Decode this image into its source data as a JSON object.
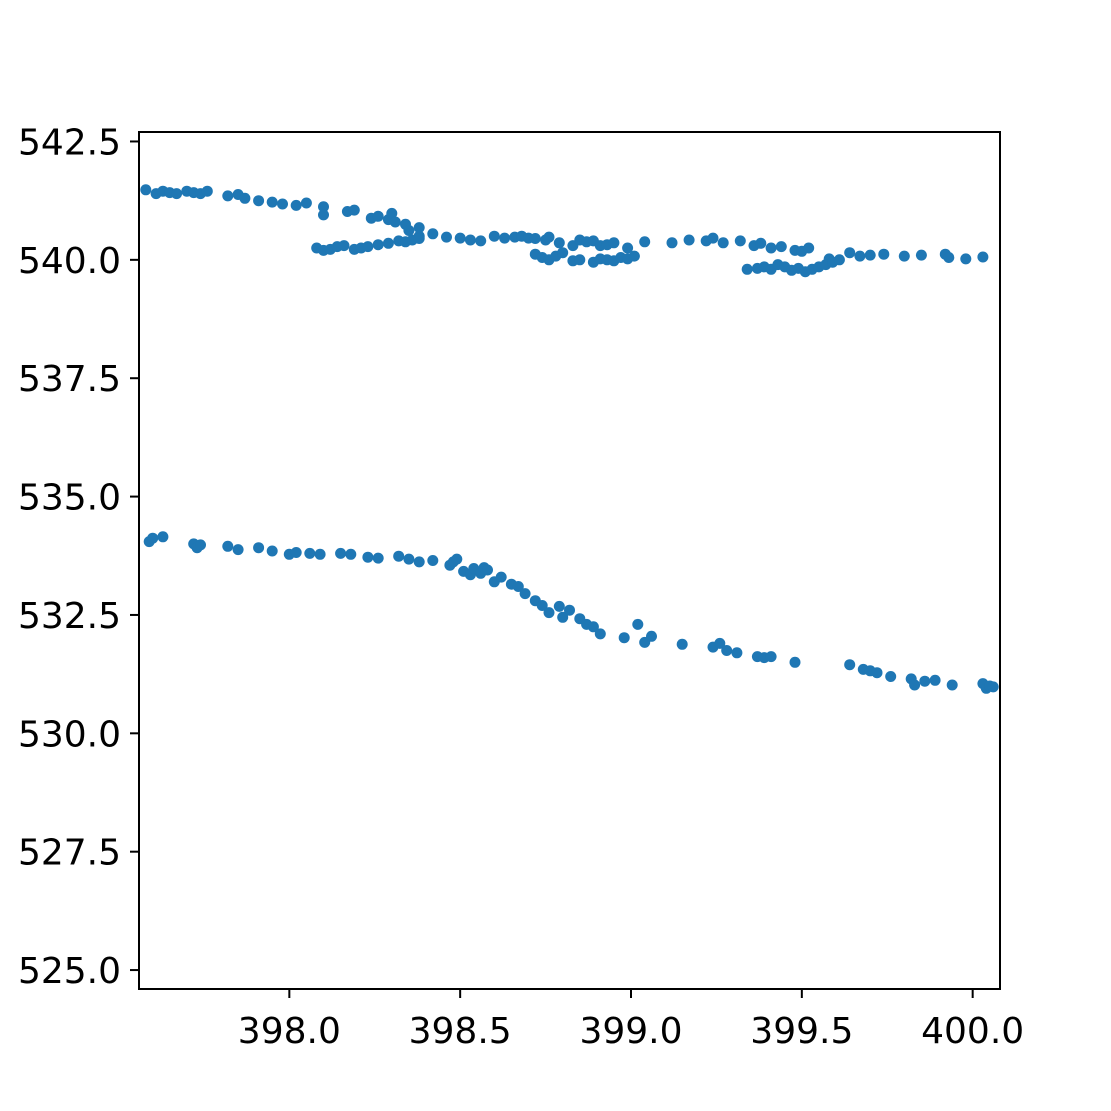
{
  "chart_data": {
    "type": "scatter",
    "title": "",
    "xlabel": "",
    "ylabel": "",
    "xlim": [
      397.56,
      400.08
    ],
    "ylim": [
      524.6,
      542.7
    ],
    "grid": false,
    "xticks": [
      398.0,
      398.5,
      399.0,
      399.5,
      400.0
    ],
    "xtick_labels": [
      "398.0",
      "398.5",
      "399.0",
      "399.5",
      "400.0"
    ],
    "yticks": [
      525.0,
      527.5,
      530.0,
      532.5,
      535.0,
      537.5,
      540.0,
      542.5
    ],
    "ytick_labels": [
      "525.0",
      "527.5",
      "530.0",
      "532.5",
      "535.0",
      "537.5",
      "540.0",
      "542.5"
    ],
    "marker_color": "#1f77b4",
    "series": [
      {
        "x": [
          397.58,
          397.61,
          397.63,
          397.65,
          397.67,
          397.7,
          397.72,
          397.74,
          397.76,
          397.82,
          397.85,
          397.87,
          397.91,
          397.95,
          397.98,
          398.02,
          398.05,
          398.1,
          398.1,
          398.17,
          398.19,
          398.24,
          398.26,
          398.29,
          398.3,
          398.31,
          398.34,
          398.35,
          398.38,
          398.38,
          398.42,
          398.46,
          398.5,
          398.53,
          398.56,
          398.6,
          398.63,
          398.66,
          398.68,
          398.7,
          398.72,
          398.75,
          398.76,
          398.79,
          398.83,
          398.85,
          398.87,
          398.89,
          398.91,
          398.93,
          398.95,
          398.99,
          399.04,
          399.12,
          399.17,
          399.22,
          399.24,
          399.27,
          399.32,
          399.36,
          399.38,
          399.41,
          399.44,
          399.48,
          399.5,
          399.52,
          399.58,
          399.64,
          399.67,
          399.7,
          399.74,
          399.8,
          399.85,
          399.92,
          399.93,
          399.98,
          400.03
        ],
        "y": [
          541.48,
          541.4,
          541.45,
          541.42,
          541.4,
          541.45,
          541.42,
          541.4,
          541.45,
          541.35,
          541.38,
          541.3,
          541.25,
          541.22,
          541.18,
          541.15,
          541.2,
          541.12,
          540.95,
          541.02,
          541.05,
          540.88,
          540.92,
          540.85,
          540.98,
          540.8,
          540.75,
          540.62,
          540.68,
          540.5,
          540.55,
          540.48,
          540.46,
          540.42,
          540.4,
          540.5,
          540.46,
          540.48,
          540.5,
          540.46,
          540.45,
          540.42,
          540.48,
          540.36,
          540.3,
          540.42,
          540.38,
          540.4,
          540.3,
          540.32,
          540.36,
          540.25,
          540.38,
          540.36,
          540.42,
          540.4,
          540.46,
          540.36,
          540.4,
          540.3,
          540.35,
          540.25,
          540.28,
          540.2,
          540.18,
          540.25,
          540.02,
          540.15,
          540.08,
          540.1,
          540.12,
          540.08,
          540.1,
          540.12,
          540.05,
          540.02,
          540.06
        ]
      },
      {
        "x": [
          398.08,
          398.1,
          398.12,
          398.14,
          398.16,
          398.19,
          398.21,
          398.23,
          398.26,
          398.29,
          398.32,
          398.34,
          398.36,
          398.38,
          398.72,
          398.74,
          398.76,
          398.78,
          398.8,
          398.83,
          398.85,
          398.89,
          398.91,
          398.93,
          398.95,
          398.97,
          398.99,
          399.01,
          399.34,
          399.37,
          399.39,
          399.41,
          399.43,
          399.45,
          399.47,
          399.49,
          399.51,
          399.53,
          399.55,
          399.57,
          399.59,
          399.61
        ],
        "y": [
          540.25,
          540.2,
          540.22,
          540.28,
          540.3,
          540.22,
          540.25,
          540.28,
          540.32,
          540.35,
          540.4,
          540.38,
          540.42,
          540.45,
          540.12,
          540.05,
          540.0,
          540.08,
          540.15,
          539.98,
          540.0,
          539.95,
          540.02,
          540.0,
          539.98,
          540.05,
          540.02,
          540.08,
          539.8,
          539.82,
          539.85,
          539.8,
          539.9,
          539.85,
          539.78,
          539.82,
          539.75,
          539.8,
          539.85,
          539.9,
          539.95,
          540.0
        ]
      },
      {
        "x": [
          397.59,
          397.6,
          397.63,
          397.72,
          397.73,
          397.74,
          397.82,
          397.85,
          397.91,
          397.95,
          398.0,
          398.02,
          398.06,
          398.09,
          398.15,
          398.18,
          398.23,
          398.26,
          398.32,
          398.35,
          398.38,
          398.42,
          398.47,
          398.48,
          398.49,
          398.51,
          398.53,
          398.54,
          398.56,
          398.57,
          398.58,
          398.6,
          398.62,
          398.65,
          398.67,
          398.69,
          398.72,
          398.74,
          398.76,
          398.79,
          398.8,
          398.82,
          398.85,
          398.87,
          398.89,
          398.91,
          398.98,
          399.02,
          399.04,
          399.06,
          399.15,
          399.24,
          399.26,
          399.28,
          399.31,
          399.37,
          399.39,
          399.41,
          399.48,
          399.64,
          399.68,
          399.7,
          399.72,
          399.76,
          399.82,
          399.83,
          399.86,
          399.89,
          399.94,
          400.03,
          400.04,
          400.05,
          400.06
        ],
        "y": [
          534.05,
          534.12,
          534.15,
          534.0,
          533.92,
          533.98,
          533.95,
          533.88,
          533.92,
          533.85,
          533.78,
          533.82,
          533.8,
          533.78,
          533.8,
          533.78,
          533.72,
          533.7,
          533.74,
          533.68,
          533.62,
          533.65,
          533.55,
          533.62,
          533.68,
          533.42,
          533.35,
          533.48,
          533.38,
          533.5,
          533.45,
          533.2,
          533.3,
          533.15,
          533.1,
          532.95,
          532.8,
          532.7,
          532.55,
          532.68,
          532.45,
          532.6,
          532.42,
          532.3,
          532.25,
          532.1,
          532.02,
          532.3,
          531.92,
          532.05,
          531.88,
          531.82,
          531.9,
          531.75,
          531.7,
          531.62,
          531.6,
          531.62,
          531.5,
          531.45,
          531.35,
          531.32,
          531.28,
          531.2,
          531.15,
          531.02,
          531.1,
          531.12,
          531.02,
          531.05,
          530.95,
          531.0,
          530.98
        ]
      }
    ]
  }
}
